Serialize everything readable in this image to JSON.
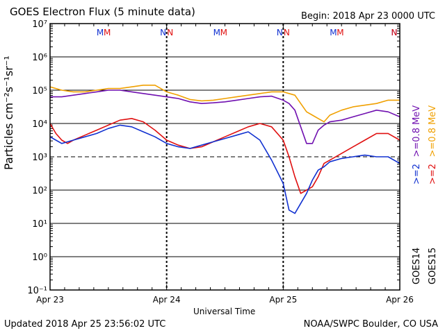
{
  "title": "GOES Electron Flux (5 minute data)",
  "begin": "Begin: 2018 Apr 23 0000 UTC",
  "updated": "Updated 2018 Apr 25 23:56:02 UTC",
  "credit": "NOAA/SWPC Boulder, CO USA",
  "chart_data": {
    "type": "line",
    "title": "GOES Electron Flux (5 minute data)",
    "xlabel": "Universal Time",
    "ylabel": "Particles cm⁻²s⁻¹sr⁻¹",
    "yscale": "log",
    "ylim_exp": [
      -1,
      7
    ],
    "xlim_days": [
      0,
      3
    ],
    "x_tick_labels": [
      "Apr 23",
      "Apr 24",
      "Apr 25",
      "Apr 26"
    ],
    "y_tick_exps": [
      -1,
      0,
      1,
      2,
      3,
      4,
      5,
      6,
      7
    ],
    "y_tick_labels": [
      "10⁻¹",
      "10⁰",
      "10¹",
      "10²",
      "10³",
      "10⁴",
      "10⁵",
      "10⁶",
      "10⁷"
    ],
    "threshold_exp": 3,
    "grid": true,
    "markers": [
      {
        "label": "M",
        "color": "#1030d0",
        "x": 0.43
      },
      {
        "label": "M",
        "color": "#e01010",
        "x": 0.49
      },
      {
        "label": "N",
        "color": "#1030d0",
        "x": 0.97
      },
      {
        "label": "N",
        "color": "#e01010",
        "x": 1.03
      },
      {
        "label": "M",
        "color": "#1030d0",
        "x": 1.43
      },
      {
        "label": "M",
        "color": "#e01010",
        "x": 1.49
      },
      {
        "label": "N",
        "color": "#1030d0",
        "x": 1.97
      },
      {
        "label": "N",
        "color": "#e01010",
        "x": 2.03
      },
      {
        "label": "M",
        "color": "#1030d0",
        "x": 2.43
      },
      {
        "label": "M",
        "color": "#e01010",
        "x": 2.49
      },
      {
        "label": "N",
        "color": "#1030d0",
        "x": 2.97
      },
      {
        "label": "N",
        "color": "#e01010",
        "x": 3.03
      }
    ],
    "legend": [
      {
        "text": ">=0.8 MeV",
        "color": "#f0a000",
        "column": "right"
      },
      {
        "text": ">=0.8 MeV",
        "color": "#7010b0",
        "column": "left"
      },
      {
        "text": ">=2",
        "color": "#e01010",
        "column": "right"
      },
      {
        "text": ">=2",
        "color": "#1030d0",
        "column": "left"
      },
      {
        "text": "GOES14",
        "color": "#000000",
        "column": "left"
      },
      {
        "text": "GOES15",
        "color": "#000000",
        "column": "right"
      }
    ],
    "series": [
      {
        "name": ">=0.8 MeV GOES15",
        "color": "#f0a000",
        "x": [
          0,
          0.1,
          0.2,
          0.3,
          0.4,
          0.5,
          0.6,
          0.7,
          0.8,
          0.9,
          1.0,
          1.1,
          1.2,
          1.3,
          1.4,
          1.5,
          1.6,
          1.7,
          1.8,
          1.9,
          2.0,
          2.05,
          2.1,
          2.15,
          2.2,
          2.25,
          2.3,
          2.35,
          2.4,
          2.5,
          2.6,
          2.7,
          2.8,
          2.9,
          3.0
        ],
        "y": [
          5.1,
          5.0,
          4.95,
          4.95,
          5.0,
          5.05,
          5.05,
          5.1,
          5.15,
          5.15,
          4.95,
          4.85,
          4.72,
          4.68,
          4.7,
          4.75,
          4.8,
          4.85,
          4.9,
          4.95,
          4.95,
          4.9,
          4.85,
          4.6,
          4.35,
          4.25,
          4.15,
          4.05,
          4.25,
          4.4,
          4.5,
          4.55,
          4.6,
          4.7,
          4.7
        ]
      },
      {
        "name": ">=0.8 MeV GOES14",
        "color": "#7010b0",
        "x": [
          0,
          0.1,
          0.2,
          0.3,
          0.4,
          0.5,
          0.6,
          0.7,
          0.8,
          0.9,
          1.0,
          1.1,
          1.2,
          1.3,
          1.4,
          1.5,
          1.6,
          1.7,
          1.8,
          1.9,
          2.0,
          2.05,
          2.1,
          2.15,
          2.2,
          2.25,
          2.3,
          2.35,
          2.4,
          2.5,
          2.6,
          2.7,
          2.8,
          2.9,
          3.0
        ],
        "y": [
          4.8,
          4.8,
          4.85,
          4.9,
          4.95,
          5.0,
          5.0,
          4.95,
          4.9,
          4.85,
          4.8,
          4.75,
          4.65,
          4.6,
          4.62,
          4.65,
          4.7,
          4.75,
          4.8,
          4.82,
          4.7,
          4.6,
          4.4,
          3.9,
          3.4,
          3.4,
          3.8,
          3.95,
          4.05,
          4.1,
          4.2,
          4.3,
          4.4,
          4.35,
          4.2
        ]
      },
      {
        "name": ">=2 MeV GOES15",
        "color": "#e01010",
        "x": [
          0,
          0.05,
          0.1,
          0.15,
          0.2,
          0.3,
          0.4,
          0.5,
          0.6,
          0.7,
          0.8,
          0.9,
          1.0,
          1.1,
          1.2,
          1.3,
          1.4,
          1.5,
          1.6,
          1.7,
          1.8,
          1.9,
          2.0,
          2.05,
          2.1,
          2.15,
          2.2,
          2.25,
          2.3,
          2.35,
          2.4,
          2.5,
          2.6,
          2.7,
          2.8,
          2.9,
          3.0
        ],
        "y": [
          4.0,
          3.7,
          3.5,
          3.4,
          3.5,
          3.65,
          3.8,
          3.95,
          4.1,
          4.15,
          4.05,
          3.8,
          3.5,
          3.35,
          3.25,
          3.3,
          3.45,
          3.6,
          3.75,
          3.9,
          4.0,
          3.9,
          3.5,
          3.0,
          2.4,
          1.9,
          2.0,
          2.1,
          2.4,
          2.8,
          2.9,
          3.1,
          3.3,
          3.5,
          3.7,
          3.7,
          3.5
        ]
      },
      {
        "name": ">=2 MeV GOES14",
        "color": "#1030d0",
        "x": [
          0,
          0.05,
          0.1,
          0.15,
          0.2,
          0.3,
          0.4,
          0.5,
          0.6,
          0.7,
          0.8,
          0.9,
          1.0,
          1.1,
          1.2,
          1.3,
          1.4,
          1.5,
          1.6,
          1.7,
          1.8,
          1.9,
          2.0,
          2.05,
          2.1,
          2.15,
          2.2,
          2.25,
          2.3,
          2.35,
          2.4,
          2.5,
          2.6,
          2.7,
          2.8,
          2.9,
          3.0
        ],
        "y": [
          3.6,
          3.5,
          3.4,
          3.45,
          3.5,
          3.6,
          3.7,
          3.85,
          3.95,
          3.9,
          3.75,
          3.6,
          3.4,
          3.3,
          3.25,
          3.35,
          3.45,
          3.55,
          3.65,
          3.75,
          3.5,
          2.9,
          2.2,
          1.4,
          1.3,
          1.6,
          1.9,
          2.3,
          2.6,
          2.7,
          2.85,
          2.95,
          3.0,
          3.05,
          3.0,
          3.0,
          2.8
        ]
      }
    ]
  }
}
